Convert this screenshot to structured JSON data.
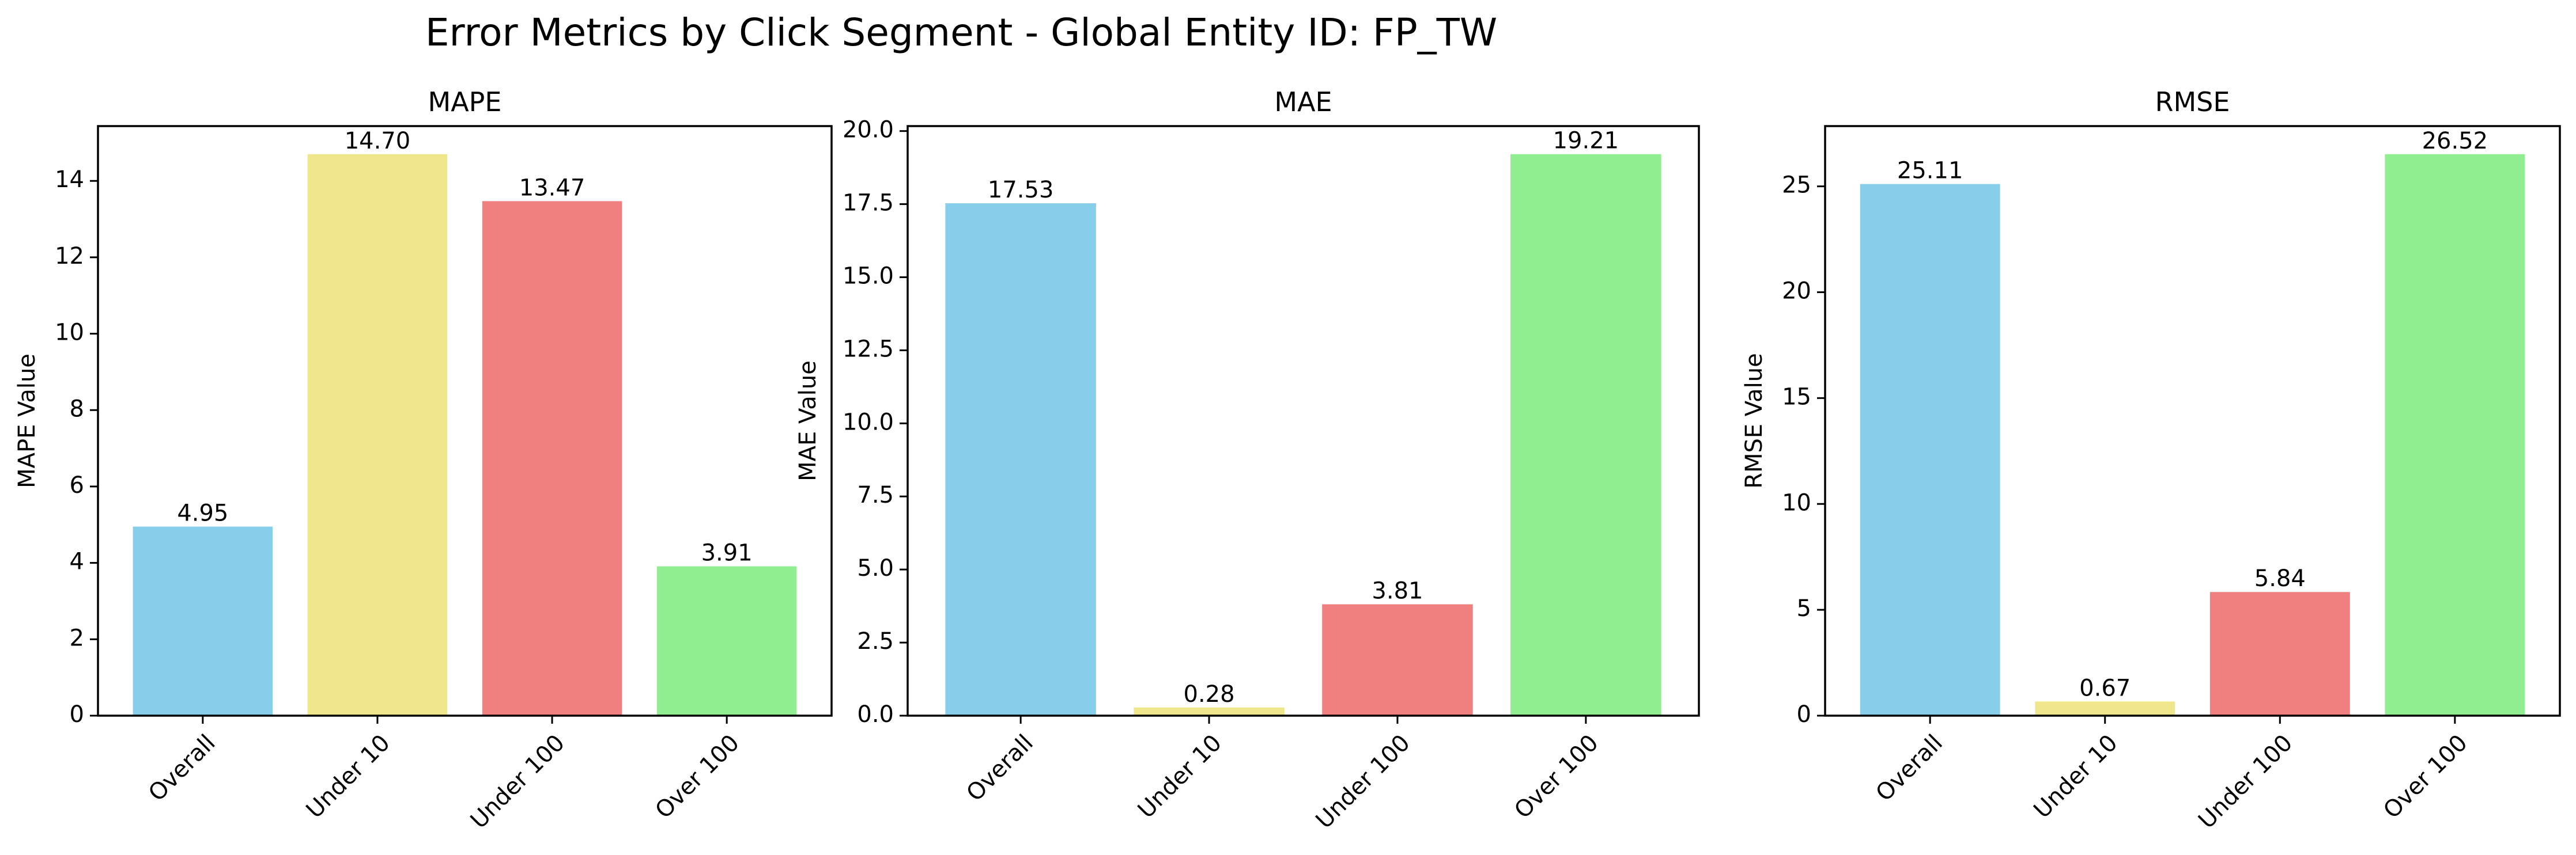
{
  "suptitle": "Error Metrics by Click Segment - Global Entity ID: FP_TW",
  "chart_data": [
    {
      "type": "bar",
      "title": "MAPE",
      "xlabel": "",
      "ylabel": "MAPE Value",
      "categories": [
        "Overall",
        "Under 10",
        "Under 100",
        "Over 100"
      ],
      "values": [
        4.95,
        14.7,
        13.47,
        3.91
      ],
      "value_labels": [
        "4.95",
        "14.70",
        "13.47",
        "3.91"
      ],
      "colors": [
        "#87ceeb",
        "#f0e68c",
        "#f08080",
        "#90ee90"
      ],
      "ylim": [
        0,
        15.435
      ],
      "yticks": [
        0,
        2,
        4,
        6,
        8,
        10,
        12,
        14
      ],
      "ytick_labels": [
        "0",
        "2",
        "4",
        "6",
        "8",
        "10",
        "12",
        "14"
      ],
      "grid": false,
      "legend": "none"
    },
    {
      "type": "bar",
      "title": "MAE",
      "xlabel": "",
      "ylabel": "MAE Value",
      "categories": [
        "Overall",
        "Under 10",
        "Under 100",
        "Over 100"
      ],
      "values": [
        17.53,
        0.28,
        3.81,
        19.21
      ],
      "value_labels": [
        "17.53",
        "0.28",
        "3.81",
        "19.21"
      ],
      "colors": [
        "#87ceeb",
        "#f0e68c",
        "#f08080",
        "#90ee90"
      ],
      "ylim": [
        0,
        20.17
      ],
      "yticks": [
        0,
        2.5,
        5,
        7.5,
        10,
        12.5,
        15,
        17.5,
        20
      ],
      "ytick_labels": [
        "0.0",
        "2.5",
        "5.0",
        "7.5",
        "10.0",
        "12.5",
        "15.0",
        "17.5",
        "20.0"
      ],
      "grid": false,
      "legend": "none"
    },
    {
      "type": "bar",
      "title": "RMSE",
      "xlabel": "",
      "ylabel": "RMSE Value",
      "categories": [
        "Overall",
        "Under 10",
        "Under 100",
        "Over 100"
      ],
      "values": [
        25.11,
        0.67,
        5.84,
        26.52
      ],
      "value_labels": [
        "25.11",
        "0.67",
        "5.84",
        "26.52"
      ],
      "colors": [
        "#87ceeb",
        "#f0e68c",
        "#f08080",
        "#90ee90"
      ],
      "ylim": [
        0,
        27.846
      ],
      "yticks": [
        0,
        5,
        10,
        15,
        20,
        25
      ],
      "ytick_labels": [
        "0",
        "5",
        "10",
        "15",
        "20",
        "25"
      ],
      "grid": false,
      "legend": "none"
    }
  ]
}
